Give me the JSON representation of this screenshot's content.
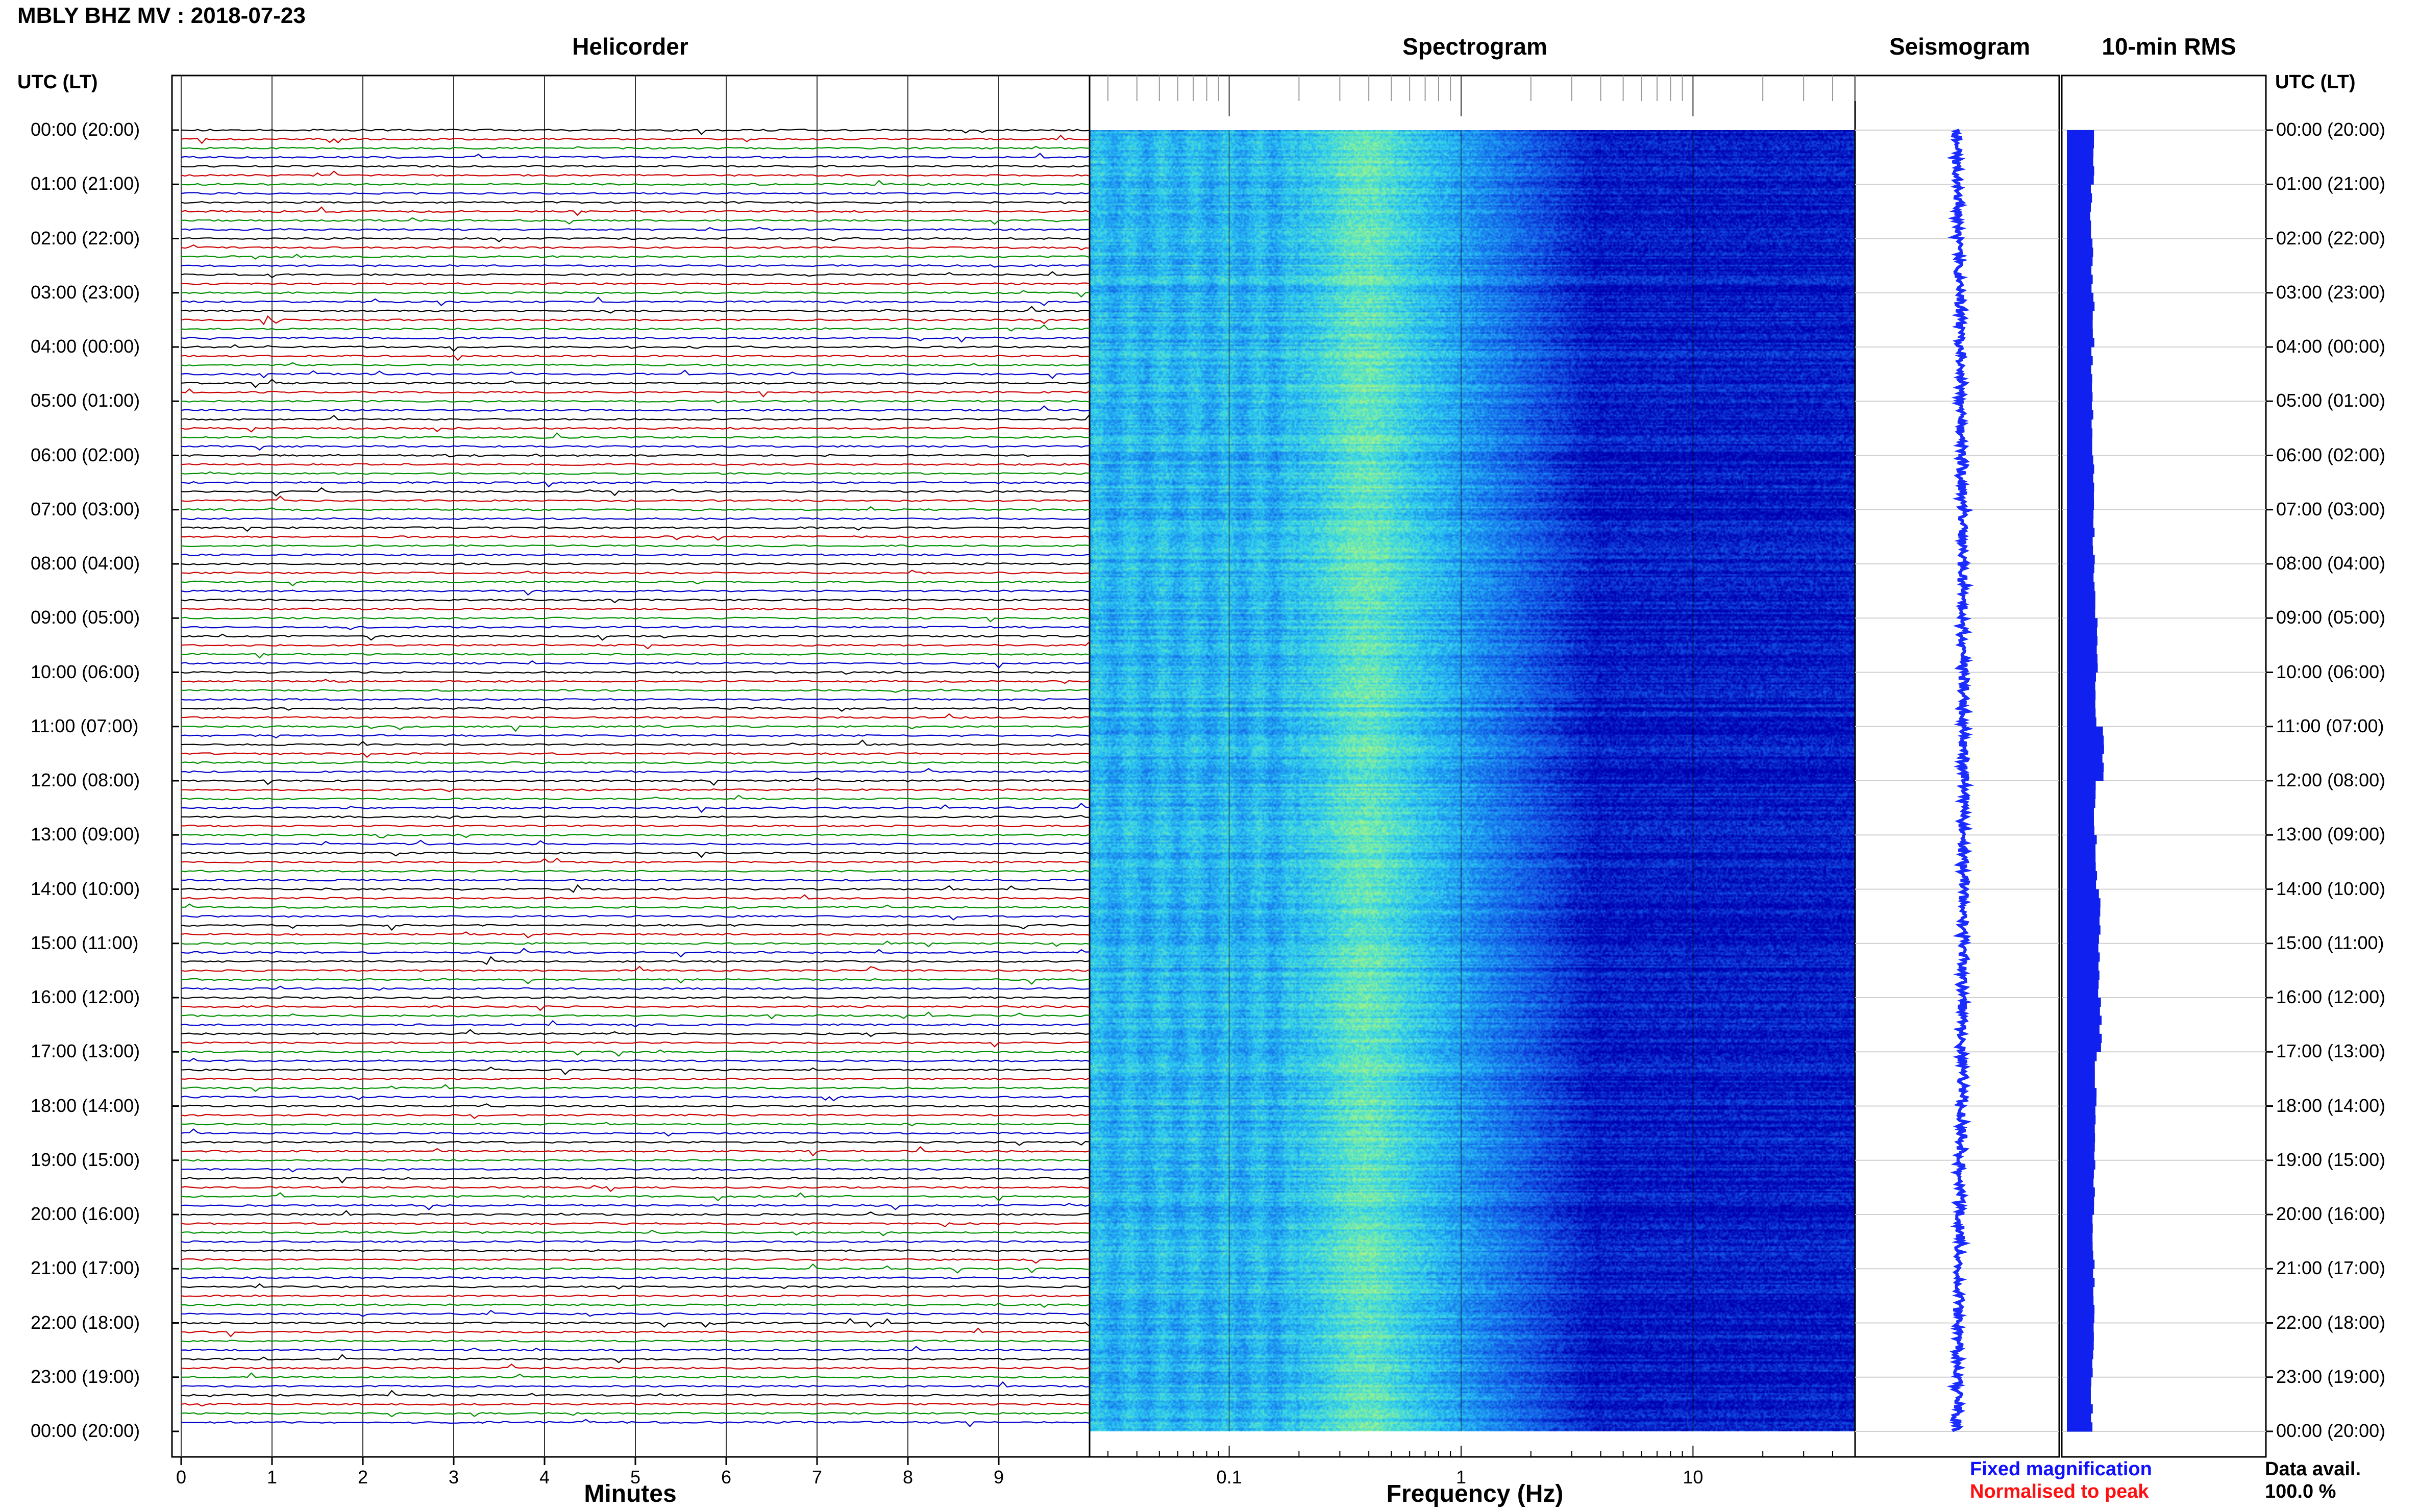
{
  "header": {
    "title": "MBLY BHZ MV : 2018-07-23"
  },
  "panels": {
    "helicorder": "Helicorder",
    "spectrogram": "Spectrogram",
    "seismogram": "Seismogram",
    "rms": "10-min RMS"
  },
  "axes": {
    "time_header_left": "UTC (LT)",
    "time_header_right": "UTC (LT)",
    "helicorder_xlabel": "Minutes",
    "spectrogram_xlabel": "Frequency (Hz)"
  },
  "legend": {
    "fixed": "Fixed magnification",
    "fixed_color": "#1010ff",
    "normalised": "Normalised to peak",
    "normalised_color": "#ff1010"
  },
  "data_availability": {
    "label": "Data avail.",
    "value": "100.0 %"
  },
  "chart_data": {
    "type": "heatmap",
    "time_labels": [
      "00:00 (20:00)",
      "01:00 (21:00)",
      "02:00 (22:00)",
      "03:00 (23:00)",
      "04:00 (00:00)",
      "05:00 (01:00)",
      "06:00 (02:00)",
      "07:00 (03:00)",
      "08:00 (04:00)",
      "09:00 (05:00)",
      "10:00 (06:00)",
      "11:00 (07:00)",
      "12:00 (08:00)",
      "13:00 (09:00)",
      "14:00 (10:00)",
      "15:00 (11:00)",
      "16:00 (12:00)",
      "17:00 (13:00)",
      "18:00 (14:00)",
      "19:00 (15:00)",
      "20:00 (16:00)",
      "21:00 (17:00)",
      "22:00 (18:00)",
      "23:00 (19:00)",
      "00:00 (20:00)"
    ],
    "helicorder": {
      "minute_ticks": [
        "0",
        "1",
        "2",
        "3",
        "4",
        "5",
        "6",
        "7",
        "8",
        "9"
      ],
      "xlim": [
        0,
        10
      ],
      "trace_colors": [
        "#000000",
        "#cc0000",
        "#009000",
        "#0000cc"
      ]
    },
    "spectrogram": {
      "freq_tick_labels": [
        "0.1",
        "1",
        "10"
      ],
      "freq_ticks": [
        0.1,
        1,
        10
      ],
      "xscale": "log",
      "xlim": [
        0.025,
        50
      ],
      "colormap": [
        "#0000b0",
        "#1048e0",
        "#1a8cf0",
        "#30d0f0",
        "#80f0a0",
        "#e0f060"
      ]
    },
    "rms_hourly": [
      0.45,
      0.42,
      0.44,
      0.46,
      0.43,
      0.44,
      0.45,
      0.46,
      0.47,
      0.52,
      0.5,
      0.62,
      0.48,
      0.5,
      0.56,
      0.55,
      0.58,
      0.5,
      0.48,
      0.47,
      0.46,
      0.47,
      0.45,
      0.43
    ]
  }
}
